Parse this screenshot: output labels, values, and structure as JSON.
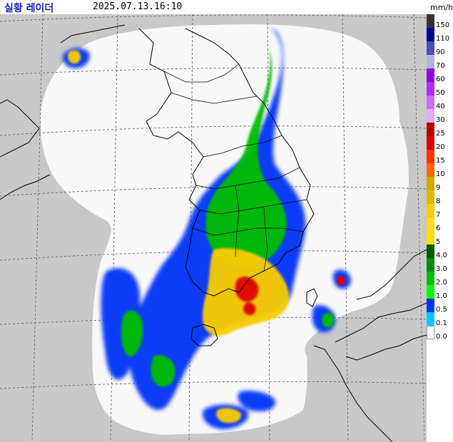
{
  "header": {
    "title": "실황 레이더",
    "timestamp": "2025.07.13.16:10",
    "unit": "mm/h"
  },
  "colors": {
    "land": "#c8c8c8",
    "coverage": "#f8f8f8",
    "grid": "#555555",
    "coast": "#000000",
    "title": "#1a1ac8"
  },
  "legend": [
    {
      "label": "150",
      "color": "#333333"
    },
    {
      "label": "110",
      "color": "#000390"
    },
    {
      "label": "90",
      "color": "#4c4eb1"
    },
    {
      "label": "70",
      "color": "#b3b4de"
    },
    {
      "label": "60",
      "color": "#9300e4"
    },
    {
      "label": "50",
      "color": "#b329ff"
    },
    {
      "label": "40",
      "color": "#c969ff"
    },
    {
      "label": "30",
      "color": "#e0a9ff"
    },
    {
      "label": "25",
      "color": "#b40000"
    },
    {
      "label": "20",
      "color": "#e00000"
    },
    {
      "label": "15",
      "color": "#ff3300"
    },
    {
      "label": "10",
      "color": "#ff6600"
    },
    {
      "label": "9",
      "color": "#ccaa00"
    },
    {
      "label": "8",
      "color": "#e0b900"
    },
    {
      "label": "7",
      "color": "#f9cd00"
    },
    {
      "label": "6",
      "color": "#ffdc1f"
    },
    {
      "label": "5",
      "color": "#ffe100"
    },
    {
      "label": "4.0",
      "color": "#005a00"
    },
    {
      "label": "3.0",
      "color": "#008c00"
    },
    {
      "label": "2.0",
      "color": "#00be00"
    },
    {
      "label": "1.0",
      "color": "#00ff00"
    },
    {
      "label": "0.5",
      "color": "#0033f5"
    },
    {
      "label": "0.1",
      "color": "#00c8ff"
    },
    {
      "label": "0.0",
      "color": "#ffffff"
    }
  ]
}
